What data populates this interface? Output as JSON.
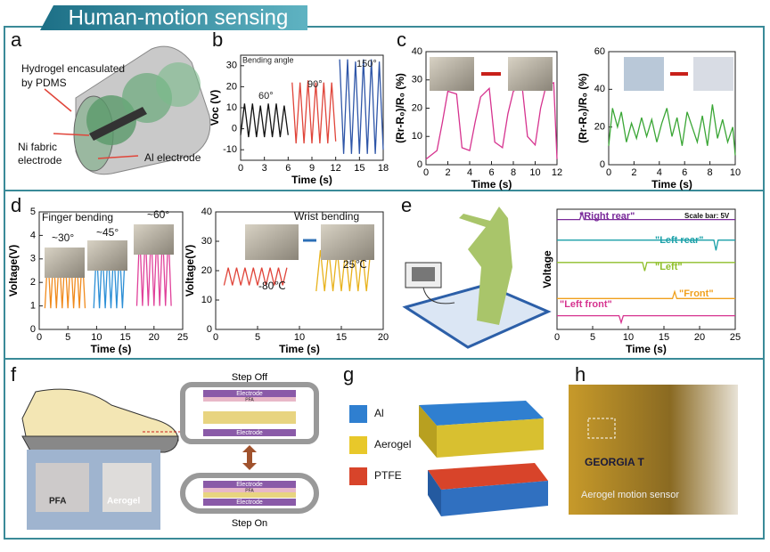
{
  "header": {
    "title": "Human-motion sensing"
  },
  "panel_labels": [
    "a",
    "b",
    "c",
    "d",
    "e",
    "f",
    "g",
    "h"
  ],
  "panel_a": {
    "labels": [
      "Hydrogel encasulated",
      "by PDMS",
      "Ni fabric",
      "electrode",
      "Al electrode"
    ]
  },
  "panel_f": {
    "photo_labels": [
      "PFA",
      "Aerogel"
    ],
    "schematic": [
      "Step Off",
      "Electrode",
      "PFA",
      "Electrode",
      "Electrode",
      "PFA",
      "Electrode",
      "Step On"
    ]
  },
  "panel_g": {
    "legend": [
      "Al",
      "Aerogel",
      "PTFE"
    ]
  },
  "panel_h": {
    "photo_texts": [
      "GEORGIA T",
      "Aerogel motion sensor"
    ]
  },
  "chart_data": [
    {
      "type": "line",
      "xlabel": "Time (s)",
      "ylabel": "Voc (V)",
      "xlim": [
        0,
        18
      ],
      "ylim": [
        -15,
        35
      ],
      "xticks": [
        0,
        3,
        6,
        9,
        12,
        15,
        18
      ],
      "yticks": [
        -10,
        0,
        10,
        20,
        30
      ],
      "annotations": [
        "Bending angle",
        "60°",
        "90°",
        "150°"
      ],
      "series": [
        {
          "color": "#111111",
          "x": [
            0,
            0.5,
            1,
            1.5,
            2,
            2.5,
            3,
            3.5,
            4,
            4.5,
            5,
            5.5,
            6
          ],
          "values": [
            -3,
            12,
            -4,
            12,
            -4,
            11,
            -4,
            12,
            -4,
            12,
            -4,
            11,
            -3
          ]
        },
        {
          "color": "#e0453a",
          "x": [
            6.5,
            7,
            7.5,
            8,
            8.5,
            9,
            9.5,
            10,
            10.5,
            11,
            11.5,
            12
          ],
          "values": [
            22,
            -7,
            22,
            -7,
            23,
            -7,
            22,
            -7,
            22,
            -7,
            22,
            -6
          ]
        },
        {
          "color": "#2f56a8",
          "x": [
            12.5,
            13,
            13.5,
            14,
            14.5,
            15,
            15.5,
            16,
            16.5,
            17,
            17.5,
            18
          ],
          "values": [
            33,
            -12,
            33,
            -12,
            32,
            -12,
            33,
            -12,
            33,
            -12,
            32,
            -10
          ]
        }
      ]
    },
    {
      "type": "line",
      "xlabel": "Time (s)",
      "ylabel": "(Rr-R₀)/R₀ (%)",
      "xlim": [
        0,
        12
      ],
      "ylim": [
        0,
        40
      ],
      "xticks": [
        0,
        2,
        4,
        6,
        8,
        10,
        12
      ],
      "yticks": [
        0,
        10,
        20,
        30,
        40
      ],
      "series": [
        {
          "color": "#d6338f",
          "x": [
            0,
            1,
            1.5,
            2,
            2.8,
            3.3,
            4,
            4.5,
            5,
            5.8,
            6.3,
            7,
            7.5,
            8,
            8.8,
            9.3,
            10,
            10.5,
            11,
            11.7,
            12
          ],
          "values": [
            2,
            5,
            15,
            26,
            25,
            6,
            5,
            15,
            24,
            27,
            8,
            6,
            18,
            26,
            28,
            10,
            7,
            20,
            28,
            29,
            2
          ]
        }
      ]
    },
    {
      "type": "line",
      "xlabel": "Time (s)",
      "ylabel": "(Rr-R₀)/R₀ (%)",
      "xlim": [
        0,
        10
      ],
      "ylim": [
        0,
        60
      ],
      "xticks": [
        0,
        2,
        4,
        6,
        8,
        10
      ],
      "yticks": [
        0,
        20,
        40,
        60
      ],
      "series": [
        {
          "color": "#3aa635",
          "x": [
            0,
            0.3,
            0.7,
            1,
            1.4,
            1.8,
            2.2,
            2.6,
            3,
            3.4,
            3.8,
            4.2,
            4.6,
            5,
            5.4,
            5.8,
            6.2,
            6.6,
            7,
            7.4,
            7.8,
            8.2,
            8.6,
            9,
            9.4,
            9.8,
            10
          ],
          "values": [
            10,
            30,
            20,
            28,
            12,
            22,
            14,
            25,
            15,
            24,
            12,
            22,
            30,
            15,
            25,
            10,
            28,
            20,
            12,
            26,
            10,
            32,
            14,
            24,
            12,
            20,
            5
          ]
        }
      ]
    },
    {
      "type": "line",
      "xlabel": "Time (s)",
      "ylabel": "Voltage(V)",
      "xlim": [
        0,
        25
      ],
      "ylim": [
        0,
        5
      ],
      "xticks": [
        0,
        5,
        10,
        15,
        20,
        25
      ],
      "yticks": [
        0,
        1,
        2,
        3,
        4,
        5
      ],
      "annotations": [
        "Finger bending",
        "~30°",
        "~45°",
        "~60°"
      ],
      "series": [
        {
          "color": "#f08a1c",
          "x": [
            1,
            1.5,
            2,
            2.5,
            3,
            3.5,
            4,
            4.5,
            5,
            5.5,
            6,
            6.5,
            7,
            7.5,
            8
          ],
          "values": [
            0.9,
            3.2,
            0.9,
            3.2,
            0.9,
            3.2,
            0.9,
            3.2,
            0.9,
            3.2,
            0.9,
            3.2,
            0.9,
            3.2,
            0.9
          ]
        },
        {
          "color": "#2c8fd6",
          "x": [
            9.5,
            10,
            10.5,
            11,
            11.5,
            12,
            12.5,
            13,
            13.5,
            14,
            14.5,
            15
          ],
          "values": [
            0.9,
            3.5,
            0.9,
            3.5,
            0.9,
            3.5,
            0.9,
            3.5,
            0.9,
            3.5,
            0.9,
            3.5
          ]
        },
        {
          "color": "#e0419a",
          "x": [
            17,
            17.5,
            18,
            18.5,
            19,
            19.5,
            20,
            20.5,
            21,
            21.5,
            22,
            22.5,
            23
          ],
          "values": [
            1,
            4.2,
            1,
            4.2,
            1,
            4.2,
            1,
            4.2,
            1,
            4.2,
            1,
            4.2,
            1
          ]
        }
      ]
    },
    {
      "type": "line",
      "xlabel": "Time (s)",
      "ylabel": "Voltage(V)",
      "xlim": [
        0,
        20
      ],
      "ylim": [
        0,
        40
      ],
      "xticks": [
        0,
        5,
        10,
        15,
        20
      ],
      "yticks": [
        0,
        10,
        20,
        30,
        40
      ],
      "annotations": [
        "Wrist bending",
        "-80℃",
        "25℃"
      ],
      "series": [
        {
          "color": "#e0453a",
          "x": [
            1,
            1.5,
            2,
            2.5,
            3,
            3.5,
            4,
            4.5,
            5,
            5.5,
            6,
            6.5,
            7,
            7.5,
            8,
            8.5
          ],
          "values": [
            15,
            21,
            15,
            21,
            15,
            21,
            15,
            21,
            15,
            21,
            15,
            21,
            15,
            21,
            15,
            21
          ]
        },
        {
          "color": "#e8b21c",
          "x": [
            12,
            12.5,
            13,
            13.5,
            14,
            14.5,
            15,
            15.5,
            16,
            16.5,
            17,
            17.5,
            18,
            18.5
          ],
          "values": [
            13,
            27,
            13,
            27,
            13,
            27,
            13,
            27,
            13,
            27,
            13,
            27,
            13,
            27
          ]
        }
      ]
    },
    {
      "type": "line",
      "xlabel": "Time (s)",
      "ylabel": "Voltage",
      "xlim": [
        0,
        25
      ],
      "ylim": [
        0,
        35
      ],
      "xticks": [
        0,
        5,
        10,
        15,
        20,
        25
      ],
      "annotations": [
        "\"Right rear\"",
        "\"Left rear\"",
        "\"Left\"",
        "\"Front\"",
        "\"Left front\"",
        "Scale bar: 5V"
      ],
      "series": [
        {
          "color": "#7a2a9a",
          "x": [
            0,
            3.2,
            3.5,
            3.8,
            25
          ],
          "values": [
            32,
            32,
            34,
            32,
            32
          ]
        },
        {
          "color": "#1aa0a8",
          "x": [
            0,
            22,
            22.3,
            22.6,
            25
          ],
          "values": [
            26,
            26,
            23,
            26,
            26
          ]
        },
        {
          "color": "#8fbf2a",
          "x": [
            0,
            12,
            12.3,
            12.6,
            25
          ],
          "values": [
            19.5,
            19.5,
            17,
            19.5,
            19.5
          ]
        },
        {
          "color": "#f0a01c",
          "x": [
            0,
            16.2,
            16.5,
            16.8,
            25
          ],
          "values": [
            9,
            9,
            11,
            9,
            9
          ]
        },
        {
          "color": "#d6338f",
          "x": [
            0,
            8.7,
            9,
            9.3,
            25
          ],
          "values": [
            4,
            4,
            2,
            4,
            4
          ]
        }
      ]
    }
  ]
}
